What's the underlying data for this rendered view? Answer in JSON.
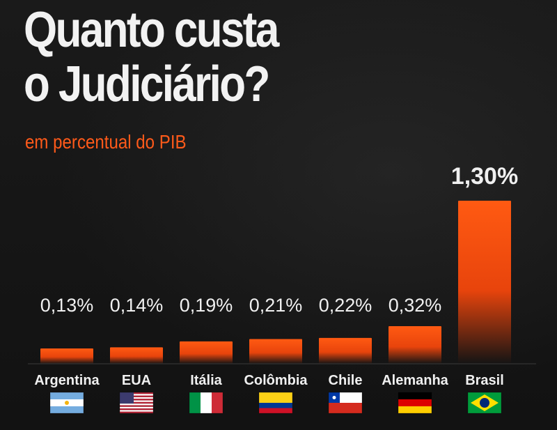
{
  "title_line1": "Quanto custa",
  "title_line2": "o Judiciário?",
  "subtitle": "em percentual do PIB",
  "colors": {
    "accent": "#ff5a1a",
    "bar_top": "#ff5a12",
    "background": "#141414",
    "text": "#f2f2f2"
  },
  "chart_data": {
    "type": "bar",
    "categories": [
      "Argentina",
      "EUA",
      "Itália",
      "Colômbia",
      "Chile",
      "Alemanha",
      "Brasil"
    ],
    "values": [
      0.13,
      0.14,
      0.19,
      0.21,
      0.22,
      0.32,
      1.3
    ],
    "value_labels": [
      "0,13%",
      "0,14%",
      "0,19%",
      "0,21%",
      "0,22%",
      "0,32%",
      "1,30%"
    ],
    "flag_icons": [
      "argentina-flag-icon",
      "usa-flag-icon",
      "italy-flag-icon",
      "colombia-flag-icon",
      "chile-flag-icon",
      "germany-flag-icon",
      "brazil-flag-icon"
    ],
    "title": "Quanto custa o Judiciário?",
    "subtitle": "em percentual do PIB",
    "ylim": [
      0,
      1.3
    ],
    "grid": false,
    "legend": "none"
  }
}
